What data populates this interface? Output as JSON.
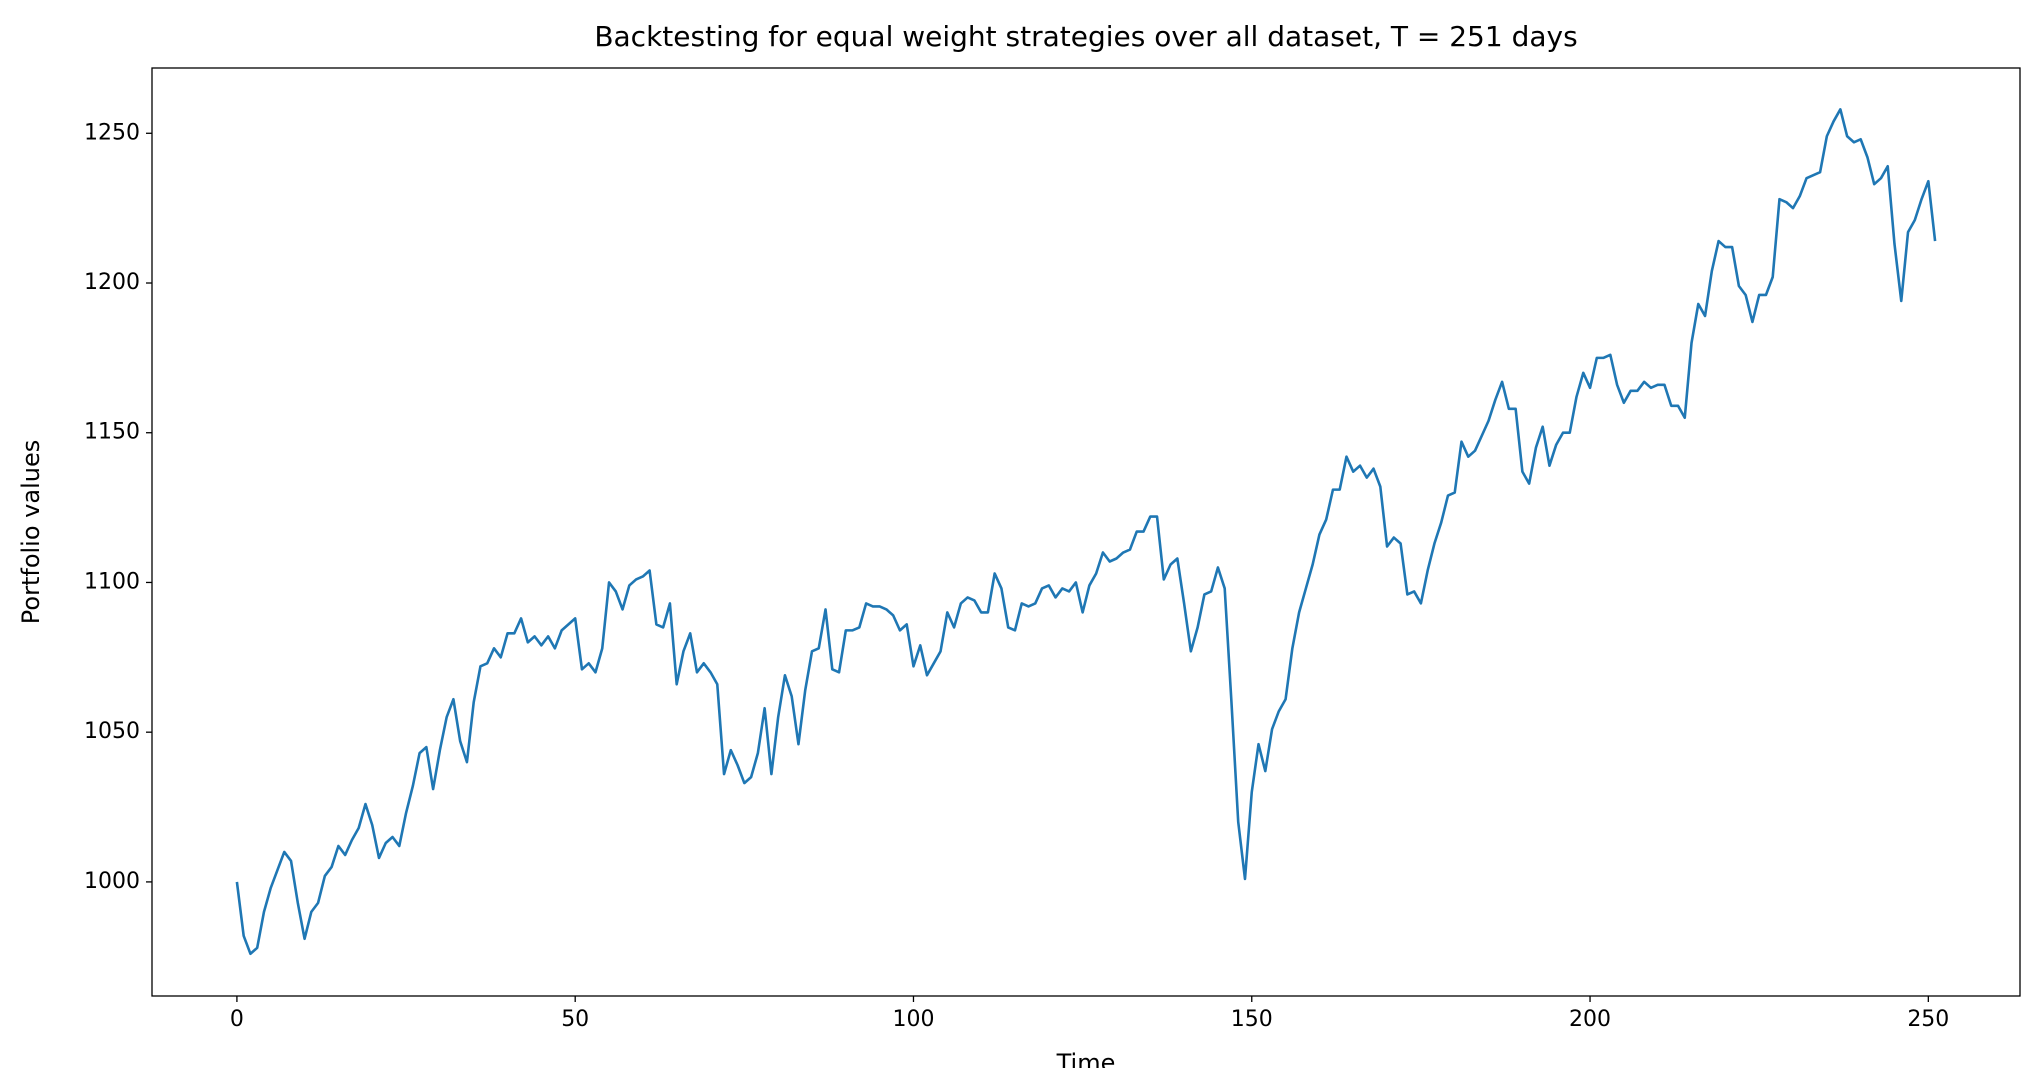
{
  "chart_data": {
    "type": "line",
    "title": "Backtesting for equal weight strategies over all dataset, T = 251 days",
    "x_label": "Time",
    "y_label": "Portfolio values",
    "xlim": [
      -12.55,
      263.55
    ],
    "xticks": [
      0,
      50,
      100,
      150,
      200,
      250
    ],
    "ylim": [
      961.9,
      1271.8
    ],
    "yticks": [
      1000,
      1050,
      1100,
      1150,
      1200,
      1250
    ],
    "grid": false,
    "x": [
      0,
      1,
      2,
      3,
      4,
      5,
      6,
      7,
      8,
      9,
      10,
      11,
      12,
      13,
      14,
      15,
      16,
      17,
      18,
      19,
      20,
      21,
      22,
      23,
      24,
      25,
      26,
      27,
      28,
      29,
      30,
      31,
      32,
      33,
      34,
      35,
      36,
      37,
      38,
      39,
      40,
      41,
      42,
      43,
      44,
      45,
      46,
      47,
      48,
      49,
      50,
      51,
      52,
      53,
      54,
      55,
      56,
      57,
      58,
      59,
      60,
      61,
      62,
      63,
      64,
      65,
      66,
      67,
      68,
      69,
      70,
      71,
      72,
      73,
      74,
      75,
      76,
      77,
      78,
      79,
      80,
      81,
      82,
      83,
      84,
      85,
      86,
      87,
      88,
      89,
      90,
      91,
      92,
      93,
      94,
      95,
      96,
      97,
      98,
      99,
      100,
      101,
      102,
      103,
      104,
      105,
      106,
      107,
      108,
      109,
      110,
      111,
      112,
      113,
      114,
      115,
      116,
      117,
      118,
      119,
      120,
      121,
      122,
      123,
      124,
      125,
      126,
      127,
      128,
      129,
      130,
      131,
      132,
      133,
      134,
      135,
      136,
      137,
      138,
      139,
      140,
      141,
      142,
      143,
      144,
      145,
      146,
      147,
      148,
      149,
      150,
      151,
      152,
      153,
      154,
      155,
      156,
      157,
      158,
      159,
      160,
      161,
      162,
      163,
      164,
      165,
      166,
      167,
      168,
      169,
      170,
      171,
      172,
      173,
      174,
      175,
      176,
      177,
      178,
      179,
      180,
      181,
      182,
      183,
      184,
      185,
      186,
      187,
      188,
      189,
      190,
      191,
      192,
      193,
      194,
      195,
      196,
      197,
      198,
      199,
      200,
      201,
      202,
      203,
      204,
      205,
      206,
      207,
      208,
      209,
      210,
      211,
      212,
      213,
      214,
      215,
      216,
      217,
      218,
      219,
      220,
      221,
      222,
      223,
      224,
      225,
      226,
      227,
      228,
      229,
      230,
      231,
      232,
      233,
      234,
      235,
      236,
      237,
      238,
      239,
      240,
      241,
      242,
      243,
      244,
      245,
      246,
      247,
      248,
      249,
      250,
      251
    ],
    "series": [
      {
        "color": "#1f77b4",
        "values": [
          1000,
          982,
          976,
          978,
          990,
          998,
          1004,
          1010,
          1007,
          993,
          981,
          990,
          993,
          1002,
          1005,
          1012,
          1009,
          1014,
          1018,
          1026,
          1019,
          1008,
          1013,
          1015,
          1012,
          1023,
          1032,
          1043,
          1045,
          1031,
          1044,
          1055,
          1061,
          1047,
          1040,
          1060,
          1072,
          1073,
          1078,
          1075,
          1083,
          1083,
          1088,
          1080,
          1082,
          1079,
          1082,
          1078,
          1084,
          1086,
          1088,
          1071,
          1073,
          1070,
          1078,
          1100,
          1097,
          1091,
          1099,
          1101,
          1102,
          1104,
          1086,
          1085,
          1093,
          1066,
          1077,
          1083,
          1070,
          1073,
          1070,
          1066,
          1036,
          1044,
          1039,
          1033,
          1035,
          1043,
          1058,
          1036,
          1055,
          1069,
          1062,
          1046,
          1064,
          1077,
          1078,
          1091,
          1071,
          1070,
          1084,
          1084,
          1085,
          1093,
          1092,
          1092,
          1091,
          1089,
          1084,
          1086,
          1072,
          1079,
          1069,
          1073,
          1077,
          1090,
          1085,
          1093,
          1095,
          1094,
          1090,
          1090,
          1103,
          1098,
          1085,
          1084,
          1093,
          1092,
          1093,
          1098,
          1099,
          1095,
          1098,
          1097,
          1100,
          1090,
          1099,
          1103,
          1110,
          1107,
          1108,
          1110,
          1111,
          1117,
          1117,
          1122,
          1122,
          1101,
          1106,
          1108,
          1093,
          1077,
          1085,
          1096,
          1097,
          1105,
          1098,
          1060,
          1020,
          1001,
          1030,
          1046,
          1037,
          1051,
          1057,
          1061,
          1078,
          1090,
          1098,
          1106,
          1116,
          1121,
          1131,
          1131,
          1142,
          1137,
          1139,
          1135,
          1138,
          1132,
          1112,
          1115,
          1113,
          1096,
          1097,
          1093,
          1104,
          1113,
          1120,
          1129,
          1130,
          1147,
          1142,
          1144,
          1149,
          1154,
          1161,
          1167,
          1158,
          1158,
          1137,
          1133,
          1145,
          1152,
          1139,
          1146,
          1150,
          1150,
          1162,
          1170,
          1165,
          1175,
          1175,
          1176,
          1166,
          1160,
          1164,
          1164,
          1167,
          1165,
          1166,
          1166,
          1159,
          1159,
          1155,
          1180,
          1193,
          1189,
          1204,
          1214,
          1212,
          1212,
          1199,
          1196,
          1187,
          1196,
          1196,
          1202,
          1228,
          1227,
          1225,
          1229,
          1235,
          1236,
          1237,
          1249,
          1254,
          1258,
          1249,
          1247,
          1248,
          1242,
          1233,
          1235,
          1239,
          1213,
          1194,
          1217,
          1221,
          1228,
          1234,
          1214
        ]
      }
    ]
  }
}
